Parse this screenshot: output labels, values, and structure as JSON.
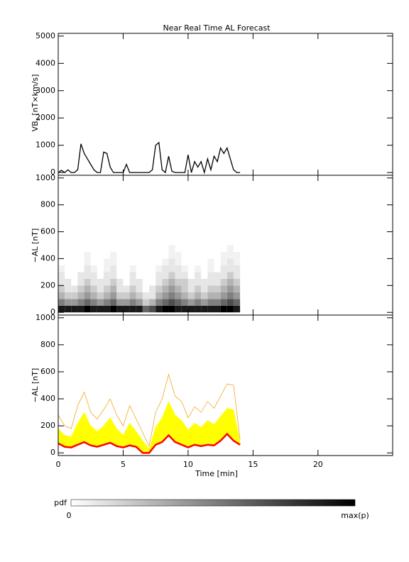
{
  "chart_data": [
    {
      "type": "line",
      "title": "Near Real Time AL Forecast",
      "ylabel": [
        "VB",
        "s",
        " [nT×km/s]"
      ],
      "ylim": [
        -100,
        5100
      ],
      "yticks": [
        0,
        1000,
        2000,
        3000,
        4000,
        5000
      ],
      "color": "#000000",
      "x": [
        0,
        0.25,
        0.5,
        0.75,
        1,
        1.25,
        1.5,
        1.75,
        2,
        2.25,
        2.5,
        2.75,
        3,
        3.25,
        3.5,
        3.75,
        4,
        4.25,
        4.5,
        4.75,
        5,
        5.25,
        5.5,
        5.75,
        6,
        6.25,
        6.5,
        6.75,
        7,
        7.25,
        7.5,
        7.75,
        8,
        8.25,
        8.5,
        8.75,
        9,
        9.25,
        9.5,
        9.75,
        10,
        10.25,
        10.5,
        10.75,
        11,
        11.25,
        11.5,
        11.75,
        12,
        12.25,
        12.5,
        12.75,
        13,
        13.25,
        13.5,
        13.75,
        14
      ],
      "values": [
        0,
        80,
        0,
        100,
        0,
        0,
        100,
        1050,
        700,
        500,
        300,
        100,
        0,
        0,
        750,
        700,
        200,
        0,
        0,
        0,
        0,
        300,
        0,
        0,
        0,
        0,
        0,
        0,
        0,
        100,
        1000,
        1100,
        100,
        0,
        600,
        50,
        0,
        0,
        0,
        0,
        650,
        0,
        400,
        200,
        400,
        0,
        500,
        100,
        600,
        400,
        900,
        700,
        900,
        500,
        100,
        0,
        0
      ]
    },
    {
      "type": "heatmap",
      "ylabel": [
        "−AL [nT]"
      ],
      "ylim": [
        -20,
        1020
      ],
      "yticks": [
        0,
        200,
        400,
        600,
        800,
        1000
      ],
      "x_edges": [
        0,
        0.5,
        1,
        1.5,
        2,
        2.5,
        3,
        3.5,
        4,
        4.5,
        5,
        5.5,
        6,
        6.5,
        7,
        7.5,
        8,
        8.5,
        9,
        9.5,
        10,
        10.5,
        11,
        11.5,
        12,
        12.5,
        13,
        13.5,
        14
      ],
      "y_edges": [
        0,
        50,
        100,
        150,
        200,
        250,
        300,
        350,
        400,
        450,
        500
      ],
      "z": [
        [
          0.9,
          0.9,
          0.9,
          0.9,
          1,
          0.9,
          0.9,
          0.9,
          1,
          0.9,
          0.9,
          0.9,
          0.9,
          0.6,
          0.7,
          0.9,
          1,
          1,
          0.9,
          0.9,
          0.9,
          0.9,
          0.9,
          0.9,
          0.9,
          1,
          1,
          0.9
        ],
        [
          0.5,
          0.4,
          0.4,
          0.5,
          0.6,
          0.5,
          0.4,
          0.5,
          0.6,
          0.4,
          0.4,
          0.5,
          0.4,
          0.2,
          0.3,
          0.5,
          0.6,
          0.7,
          0.6,
          0.5,
          0.4,
          0.5,
          0.4,
          0.5,
          0.5,
          0.6,
          0.7,
          0.6
        ],
        [
          0.3,
          0.2,
          0.2,
          0.3,
          0.4,
          0.3,
          0.2,
          0.3,
          0.4,
          0.2,
          0.2,
          0.3,
          0.2,
          0.1,
          0.1,
          0.3,
          0.4,
          0.5,
          0.4,
          0.3,
          0.2,
          0.3,
          0.2,
          0.3,
          0.3,
          0.4,
          0.5,
          0.4
        ],
        [
          0.2,
          0.1,
          0.1,
          0.2,
          0.3,
          0.2,
          0.1,
          0.2,
          0.3,
          0.1,
          0.1,
          0.2,
          0.1,
          0,
          0.1,
          0.2,
          0.3,
          0.4,
          0.3,
          0.2,
          0.1,
          0.2,
          0.1,
          0.2,
          0.2,
          0.3,
          0.4,
          0.3
        ],
        [
          0.1,
          0.1,
          0,
          0.1,
          0.2,
          0.1,
          0.1,
          0.1,
          0.2,
          0.1,
          0,
          0.1,
          0.1,
          0,
          0,
          0.1,
          0.2,
          0.3,
          0.2,
          0.2,
          0.1,
          0.1,
          0.1,
          0.1,
          0.1,
          0.2,
          0.3,
          0.2
        ],
        [
          0.1,
          0,
          0,
          0.1,
          0.1,
          0.1,
          0,
          0.1,
          0.1,
          0,
          0,
          0.1,
          0,
          0,
          0,
          0.1,
          0.1,
          0.2,
          0.1,
          0.1,
          0,
          0.1,
          0,
          0.1,
          0.1,
          0.1,
          0.2,
          0.1
        ],
        [
          0.05,
          0,
          0,
          0,
          0.1,
          0.05,
          0,
          0.05,
          0.1,
          0,
          0,
          0.05,
          0,
          0,
          0,
          0.05,
          0.1,
          0.1,
          0.1,
          0.05,
          0,
          0.05,
          0,
          0.05,
          0,
          0.1,
          0.1,
          0.1
        ],
        [
          0,
          0,
          0,
          0,
          0.05,
          0,
          0,
          0.05,
          0.05,
          0,
          0,
          0,
          0,
          0,
          0,
          0,
          0.05,
          0.1,
          0.05,
          0,
          0,
          0,
          0,
          0.05,
          0,
          0.05,
          0.1,
          0.05
        ],
        [
          0,
          0,
          0,
          0,
          0.05,
          0,
          0,
          0,
          0.05,
          0,
          0,
          0,
          0,
          0,
          0,
          0,
          0,
          0.05,
          0.05,
          0,
          0,
          0,
          0,
          0,
          0,
          0.05,
          0.05,
          0.05
        ],
        [
          0,
          0,
          0,
          0,
          0,
          0,
          0,
          0,
          0,
          0,
          0,
          0,
          0,
          0,
          0,
          0,
          0,
          0.05,
          0,
          0,
          0,
          0,
          0,
          0,
          0,
          0,
          0.05,
          0
        ]
      ],
      "colorbar": {
        "label": "pdf",
        "min_label": "0",
        "max_label": "max(p)"
      }
    },
    {
      "type": "band",
      "ylabel": [
        "−AL [nT]"
      ],
      "xlabel": "Time [min]",
      "ylim": [
        -20,
        1020
      ],
      "yticks": [
        0,
        200,
        400,
        600,
        800,
        1000
      ],
      "xlim": [
        0,
        25.75
      ],
      "xticks": [
        0,
        5,
        10,
        15,
        20
      ],
      "x": [
        0,
        0.5,
        1,
        1.5,
        2,
        2.5,
        3,
        3.5,
        4,
        4.5,
        5,
        5.5,
        6,
        6.5,
        7,
        7.5,
        8,
        8.5,
        9,
        9.5,
        10,
        10.5,
        11,
        11.5,
        12,
        12.5,
        13,
        13.5,
        14
      ],
      "series": [
        {
          "color": "#f5a623",
          "values": [
            280,
            200,
            180,
            350,
            450,
            300,
            250,
            320,
            400,
            280,
            200,
            350,
            250,
            150,
            50,
            300,
            400,
            580,
            420,
            380,
            260,
            340,
            300,
            380,
            330,
            420,
            510,
            500,
            100
          ]
        },
        {
          "color": "#ffff00",
          "fill": true,
          "values": [
            180,
            130,
            120,
            220,
            300,
            200,
            160,
            200,
            260,
            180,
            130,
            220,
            160,
            90,
            30,
            190,
            260,
            380,
            280,
            240,
            170,
            220,
            190,
            240,
            210,
            270,
            330,
            320,
            80
          ]
        },
        {
          "color": "#ff0000",
          "values": [
            70,
            45,
            40,
            60,
            80,
            55,
            45,
            60,
            75,
            50,
            40,
            55,
            45,
            0,
            0,
            60,
            80,
            130,
            80,
            60,
            40,
            60,
            50,
            60,
            55,
            90,
            140,
            90,
            60
          ]
        }
      ]
    }
  ]
}
